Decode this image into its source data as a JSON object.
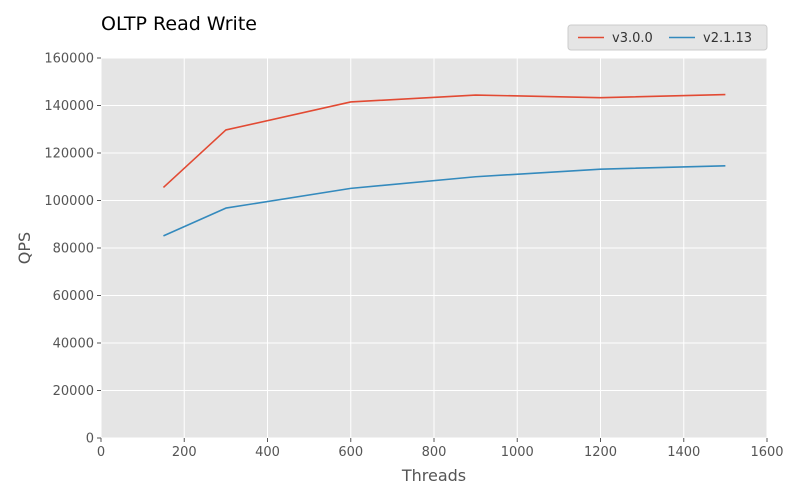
{
  "chart_data": {
    "type": "line",
    "title": "OLTP Read Write",
    "xlabel": "Threads",
    "ylabel": "QPS",
    "xlim": [
      0,
      1600
    ],
    "ylim": [
      0,
      160000
    ],
    "x_ticks": [
      0,
      200,
      400,
      600,
      800,
      1000,
      1200,
      1400,
      1600
    ],
    "y_ticks": [
      0,
      20000,
      40000,
      60000,
      80000,
      100000,
      120000,
      140000,
      160000
    ],
    "x_tick_labels": [
      "0",
      "200",
      "400",
      "600",
      "800",
      "1000",
      "1200",
      "1400",
      "1600"
    ],
    "y_tick_labels": [
      "0",
      "20000",
      "40000",
      "60000",
      "80000",
      "100000",
      "120000",
      "140000",
      "160000"
    ],
    "grid": true,
    "legend_placement": "top-right",
    "x": [
      150,
      300,
      600,
      900,
      1200,
      1500
    ],
    "series": [
      {
        "name": "v3.0.0",
        "color": "#E24A33",
        "values": [
          105500,
          129700,
          141500,
          144400,
          143300,
          144600
        ]
      },
      {
        "name": "v2.1.13",
        "color": "#348ABD",
        "values": [
          85100,
          96800,
          105100,
          110000,
          113200,
          114600
        ]
      }
    ]
  }
}
